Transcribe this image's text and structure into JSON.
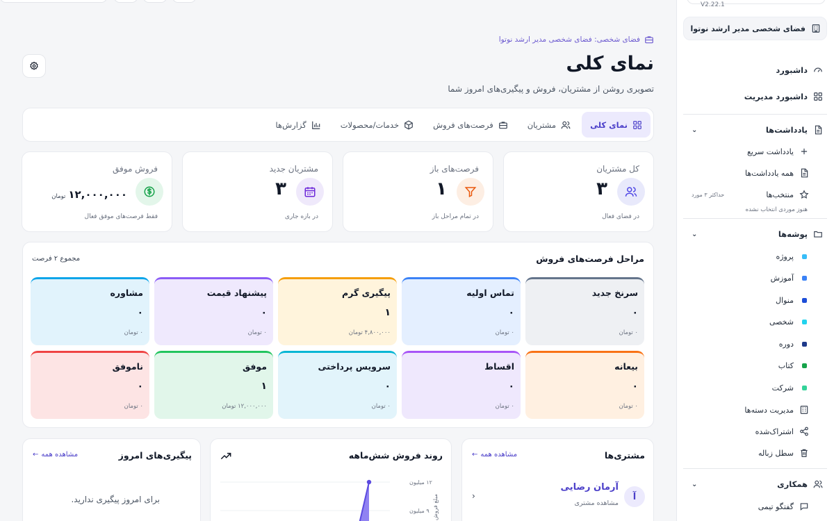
{
  "version": "V2.22.1",
  "workspace_button": "فضای شخصی مدیر ارشد نوتوا",
  "breadcrumb": "فضای شخصی: فضای شخصی مدیر ارشد نوتوا",
  "page": {
    "title": "نمای کلی",
    "subtitle": "تصویری روشن از مشتریان، فروش و پیگیری‌های امروز شما"
  },
  "tabs": [
    {
      "label": "نمای کلی",
      "icon": "grid-icon",
      "active": true
    },
    {
      "label": "مشتریان",
      "icon": "users-icon"
    },
    {
      "label": "فرصت‌های فروش",
      "icon": "briefcase-icon"
    },
    {
      "label": "خدمات/محصولات",
      "icon": "box-icon"
    },
    {
      "label": "گزارش‌ها",
      "icon": "bar-chart-icon"
    }
  ],
  "stats": [
    {
      "title": "کل مشتریان",
      "value": "۳",
      "foot": "در فضای فعال",
      "icon": "users-icon",
      "color": "#4f46e5",
      "bg": "#e8e9fb"
    },
    {
      "title": "فرصت‌های باز",
      "value": "۱",
      "foot": "در تمام مراحل باز",
      "icon": "filter-icon",
      "color": "#ea580c",
      "bg": "#fdeee3"
    },
    {
      "title": "مشتریان جدید",
      "value": "۳",
      "foot": "در بازه جاری",
      "icon": "calendar-icon",
      "color": "#6d28d9",
      "bg": "#efe9fb"
    },
    {
      "title": "فروش موفق",
      "value": "۱۲,۰۰۰,۰۰۰",
      "unit": "تومان",
      "foot": "فقط فرصت‌های موفق فعال",
      "icon": "dollar-icon",
      "color": "#16a34a",
      "bg": "#e3f6ea"
    }
  ],
  "pipeline": {
    "title": "مراحل فرصت‌های فروش",
    "total": "مجموع ۲ فرصت",
    "stages": [
      {
        "name": "سرنخ جدید",
        "count": "۰",
        "amount": "۰ تومان",
        "bg": "#eef0f3",
        "border": "#64748b"
      },
      {
        "name": "تماس اولیه",
        "count": "۰",
        "amount": "۰ تومان",
        "bg": "#e4efff",
        "border": "#3b82f6"
      },
      {
        "name": "پیگیری گرم",
        "count": "۱",
        "amount": "۴,۸۰۰,۰۰۰ تومان",
        "bg": "#fff4dc",
        "border": "#f59e0b"
      },
      {
        "name": "پیشنهاد قیمت",
        "count": "۰",
        "amount": "۰ تومان",
        "bg": "#efe9fd",
        "border": "#8b5cf6"
      },
      {
        "name": "مشاوره",
        "count": "۰",
        "amount": "۰ تومان",
        "bg": "#e1f3fc",
        "border": "#0ea5e9"
      },
      {
        "name": "بیعانه",
        "count": "۰",
        "amount": "۰ تومان",
        "bg": "#fff0e1",
        "border": "#f97316"
      },
      {
        "name": "اقساط",
        "count": "۰",
        "amount": "۰ تومان",
        "bg": "#efe8fd",
        "border": "#a855f7"
      },
      {
        "name": "سرویس پرداختی",
        "count": "۰",
        "amount": "۰ تومان",
        "bg": "#e2f4fb",
        "border": "#06b6d4"
      },
      {
        "name": "موفق",
        "count": "۱",
        "amount": "۱۲,۰۰۰,۰۰۰ تومان",
        "bg": "#e1f6ea",
        "border": "#22c55e"
      },
      {
        "name": "ناموفق",
        "count": "۰",
        "amount": "۰ تومان",
        "bg": "#fde4e4",
        "border": "#ef4444"
      }
    ]
  },
  "customers_card": {
    "title": "مشتری‌ها",
    "link": "مشاهده همه",
    "name": "آرمان رضایی",
    "sub": "مشاهده مشتری",
    "avatar": "آ"
  },
  "trend_card": {
    "title": "روند فروش شش‌ماهه"
  },
  "chart_data": {
    "type": "area",
    "y_tick_labels": [
      "۱۲ میلیون",
      "۹ میلیون"
    ],
    "ylabel": "مبلغ فروش",
    "ylim": [
      0,
      12
    ],
    "values_visible": [
      12
    ]
  },
  "followups_card": {
    "title": "پیگیری‌های امروز",
    "link": "مشاهده همه",
    "empty": "برای امروز پیگیری ندارید."
  },
  "sidebar": {
    "items": [
      {
        "label": "داشبورد",
        "icon": "gauge-icon"
      },
      {
        "label": "داشبورد مدیریت",
        "icon": "grid-icon"
      }
    ],
    "notes_section": {
      "label": "یادداشت‌ها",
      "icon": "document-icon"
    },
    "notes_items": [
      {
        "label": "یادداشت سریع",
        "icon": "plus-icon"
      },
      {
        "label": "همه یادداشت‌ها",
        "icon": "document-icon"
      },
      {
        "label": "منتخب‌ها",
        "icon": "star-icon",
        "badge": "حداکثر ۳ مورد"
      }
    ],
    "notes_empty": "هنوز موردی انتخاب نشده",
    "folders_section": {
      "label": "پوشه‌ها",
      "icon": "folder-icon"
    },
    "folders": [
      {
        "label": "پروژه",
        "color": "#38bdf8"
      },
      {
        "label": "آموزش",
        "color": "#3b82f6"
      },
      {
        "label": "منوال",
        "color": "#1d4ed8"
      },
      {
        "label": "شخصی",
        "color": "#22d3ee"
      },
      {
        "label": "دوره",
        "color": "#1e3a8a"
      },
      {
        "label": "کتاب",
        "color": "#16a34a"
      },
      {
        "label": "شرکت",
        "color": "#34d399"
      }
    ],
    "folder_actions": [
      {
        "label": "مدیریت دسته‌ها",
        "icon": "building-icon"
      },
      {
        "label": "اشتراک‌شده",
        "icon": "share-icon"
      },
      {
        "label": "سطل زباله",
        "icon": "trash-icon"
      }
    ],
    "collab_section": {
      "label": "همکاری",
      "icon": "users-icon"
    },
    "collab_items": [
      {
        "label": "گفتگو تیمی",
        "icon": "chat-icon"
      }
    ]
  }
}
